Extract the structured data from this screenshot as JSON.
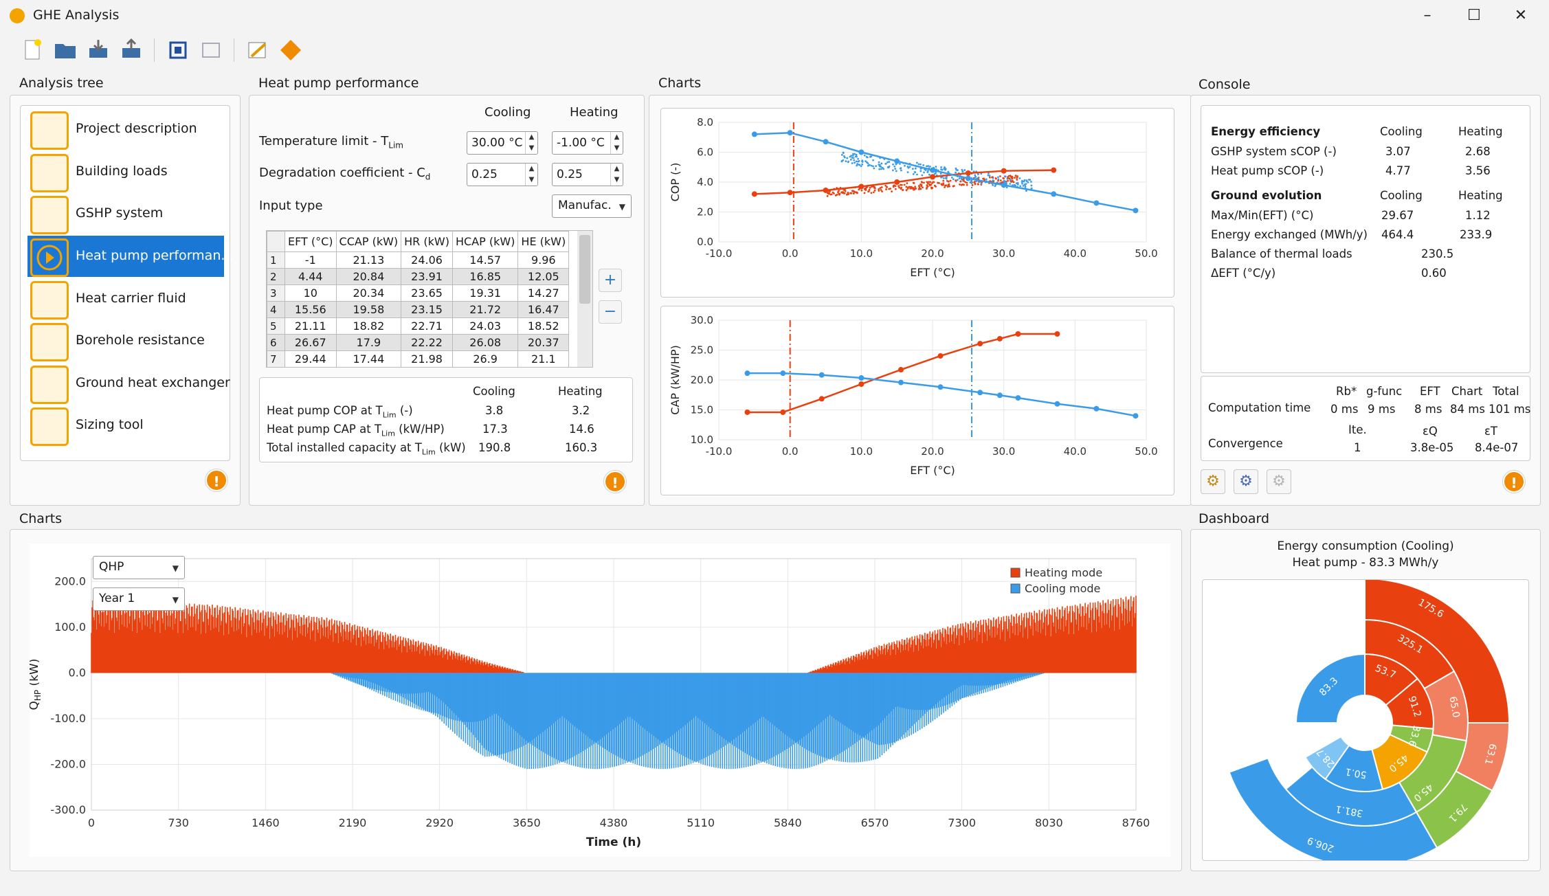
{
  "app": {
    "title": "GHE Analysis"
  },
  "toolbar": {
    "icons": [
      "new-file-icon",
      "open-folder-icon",
      "import-icon",
      "export-icon",
      "fit-view-icon",
      "screenshot-icon",
      "edit-icon",
      "run-icon"
    ]
  },
  "tree": {
    "title": "Analysis tree",
    "items": [
      {
        "label": "Project description",
        "icon": "document-icon"
      },
      {
        "label": "Building loads",
        "icon": "building-icon"
      },
      {
        "label": "GSHP system",
        "icon": "heat-pump-icon"
      },
      {
        "label": "Heat pump performan...",
        "icon": "play-icon"
      },
      {
        "label": "Heat carrier fluid",
        "icon": "hexagon-icon"
      },
      {
        "label": "Borehole resistance",
        "icon": "borehole-icon"
      },
      {
        "label": "Ground heat exchanger",
        "icon": "ghe-icon"
      },
      {
        "label": "Sizing tool",
        "icon": "sizing-icon"
      }
    ]
  },
  "hp": {
    "title": "Heat pump performance",
    "col_cooling": "Cooling",
    "col_heating": "Heating",
    "temp_limit": "Temperature limit - T",
    "temp_limit_sub": "Lim",
    "temp_cool": "30.00 °C",
    "temp_heat": "-1.00 °C",
    "degradation": "Degradation coefficient - C",
    "degradation_sub": "d",
    "deg_cool": "0.25",
    "deg_heat": "0.25",
    "input_type": "Input type",
    "input_value": "Manufac.",
    "table": {
      "headers": [
        "EFT (°C)",
        "CCAP (kW)",
        "HR (kW)",
        "HCAP (kW)",
        "HE (kW)"
      ],
      "rows": [
        [
          "1",
          "-1",
          "21.13",
          "24.06",
          "14.57",
          "9.96"
        ],
        [
          "2",
          "4.44",
          "20.84",
          "23.91",
          "16.85",
          "12.05"
        ],
        [
          "3",
          "10",
          "20.34",
          "23.65",
          "19.31",
          "14.27"
        ],
        [
          "4",
          "15.56",
          "19.58",
          "23.15",
          "21.72",
          "16.47"
        ],
        [
          "5",
          "21.11",
          "18.82",
          "22.71",
          "24.03",
          "18.52"
        ],
        [
          "6",
          "26.67",
          "17.9",
          "22.22",
          "26.08",
          "20.37"
        ],
        [
          "7",
          "29.44",
          "17.44",
          "21.98",
          "26.9",
          "21.1"
        ]
      ]
    },
    "add": "+",
    "remove": "−",
    "summary": {
      "cooling": "Cooling",
      "heating": "Heating",
      "rows": [
        {
          "label": "Heat pump COP at T",
          "sub": "Lim",
          "unit": " (-)",
          "cool": "3.8",
          "heat": "3.2"
        },
        {
          "label": "Heat pump CAP at T",
          "sub": "Lim",
          "unit": " (kW/HP)",
          "cool": "17.3",
          "heat": "14.6"
        },
        {
          "label": "Total installed capacity at T",
          "sub": "Lim",
          "unit": " (kW)",
          "cool": "190.8",
          "heat": "160.3"
        }
      ]
    }
  },
  "charts_top": {
    "title": "Charts"
  },
  "console": {
    "title": "Console",
    "ee": {
      "head": "Energy efficiency",
      "c": "Cooling",
      "h": "Heating",
      "rows": [
        {
          "label": "GSHP system sCOP (-)",
          "c": "3.07",
          "h": "2.68"
        },
        {
          "label": "Heat pump sCOP (-)",
          "c": "4.77",
          "h": "3.56"
        }
      ]
    },
    "ge": {
      "head": "Ground evolution",
      "c": "Cooling",
      "h": "Heating",
      "rows": [
        {
          "label": "Max/Min(EFT) (°C)",
          "c": "29.67",
          "h": "1.12"
        },
        {
          "label": "Energy exchanged (MWh/y)",
          "c": "464.4",
          "h": "233.9"
        }
      ],
      "balance_label": "Balance of thermal loads",
      "balance": "230.5",
      "deft_label": "ΔEFT (°C/y)",
      "deft": "0.60"
    },
    "comp": {
      "label": "Computation time",
      "headers": [
        "Rb*",
        "g-func",
        "EFT",
        "Chart",
        "Total"
      ],
      "values": [
        "0 ms",
        "9 ms",
        "8 ms",
        "84 ms",
        "101 ms"
      ]
    },
    "conv": {
      "label": "Convergence",
      "headers": [
        "Ite.",
        "εQ",
        "εT"
      ],
      "values": [
        "1",
        "3.8e-05",
        "8.4e-07"
      ]
    }
  },
  "charts_bottom": {
    "title": "Charts",
    "series_select": "QHP",
    "year_select": "Year 1"
  },
  "dashboard": {
    "title": "Dashboard",
    "chart_title": "Energy consumption (Cooling)",
    "chart_subtitle": "Heat pump - 83.3 MWh/y"
  },
  "colors": {
    "heating": "#e8400f",
    "cooling": "#3a9be8",
    "accent": "#1a78d4",
    "orange": "#f5a300",
    "green": "#8bc34a"
  },
  "chart_data": [
    {
      "type": "line",
      "id": "cop",
      "ylabel": "COP (-)",
      "xlabel": "EFT (°C)",
      "xlim": [
        -10,
        50
      ],
      "ylim": [
        0,
        8
      ],
      "xticks": [
        "-10.0",
        "0.0",
        "10.0",
        "20.0",
        "30.0",
        "40.0",
        "50.0"
      ],
      "yticks": [
        "0.0",
        "2.0",
        "4.0",
        "6.0",
        "8.0"
      ],
      "series": [
        {
          "x": [
            -5,
            0,
            5,
            10,
            15,
            20,
            25,
            30,
            37
          ],
          "y": [
            3.2,
            3.3,
            3.45,
            3.7,
            4.0,
            4.35,
            4.6,
            4.75,
            4.8
          ]
        },
        {
          "x": [
            -5,
            0,
            5,
            10,
            15,
            20,
            25,
            30,
            37,
            43,
            48.5
          ],
          "y": [
            7.2,
            7.3,
            6.7,
            6.0,
            5.4,
            4.8,
            4.25,
            3.8,
            3.2,
            2.6,
            2.1
          ]
        }
      ],
      "vlines": [
        0.5,
        25.5
      ]
    },
    {
      "type": "line",
      "id": "cap",
      "ylabel": "CAP (kW/HP)",
      "xlabel": "EFT (°C)",
      "xlim": [
        -10,
        50
      ],
      "ylim": [
        10,
        30
      ],
      "xticks": [
        "-10.0",
        "0.0",
        "10.0",
        "20.0",
        "30.0",
        "40.0",
        "50.0"
      ],
      "yticks": [
        "10.0",
        "15.0",
        "20.0",
        "25.0",
        "30.0"
      ],
      "series": [
        {
          "x": [
            -6,
            -1,
            4.44,
            10,
            15.56,
            21.11,
            26.67,
            29.44,
            32,
            37.5
          ],
          "y": [
            14.6,
            14.6,
            16.85,
            19.31,
            21.72,
            24.03,
            26.08,
            26.9,
            27.7,
            27.7
          ]
        },
        {
          "x": [
            -6,
            -1,
            4.44,
            10,
            15.56,
            21.11,
            26.67,
            29.44,
            32,
            37.5,
            43,
            48.5
          ],
          "y": [
            21.13,
            21.13,
            20.84,
            20.34,
            19.58,
            18.82,
            17.9,
            17.44,
            17.0,
            16.0,
            15.2,
            14.0
          ]
        }
      ],
      "vlines": [
        0,
        25.5
      ]
    },
    {
      "type": "area",
      "id": "qhp",
      "ylabel": "Q",
      "ylabel_sub": "HP",
      "ylabel_unit": " (kW)",
      "xlabel": "Time (h)",
      "xlim": [
        0,
        8760
      ],
      "ylim": [
        -300,
        250
      ],
      "xticks": [
        "0",
        "730",
        "1460",
        "2190",
        "2920",
        "3650",
        "4380",
        "5110",
        "5840",
        "6570",
        "7300",
        "8030",
        "8760"
      ],
      "yticks": [
        "200.0",
        "100.0",
        "0.0",
        "-100.0",
        "-200.0",
        "-300.0"
      ],
      "legend": [
        "Heating mode",
        "Cooling mode"
      ],
      "envelope": {
        "h": [
          0,
          1000,
          2000,
          2900,
          3300,
          3650,
          6000,
          6600,
          7300,
          8000,
          8760
        ],
        "heat": [
          160,
          150,
          120,
          60,
          25,
          0,
          0,
          60,
          110,
          140,
          170
        ],
        "cool": [
          0,
          0,
          0,
          -100,
          -190,
          -210,
          -210,
          -190,
          -60,
          0,
          0
        ]
      }
    },
    {
      "type": "pie",
      "id": "sunburst",
      "labels": [
        "175.6",
        "325.1",
        "53.7",
        "91.2",
        "65.0",
        "63.1",
        "79.1",
        "45.0",
        "381.1",
        "45.0",
        "50.1",
        "206.9",
        "33.6",
        "28.7",
        "83.3"
      ]
    }
  ]
}
